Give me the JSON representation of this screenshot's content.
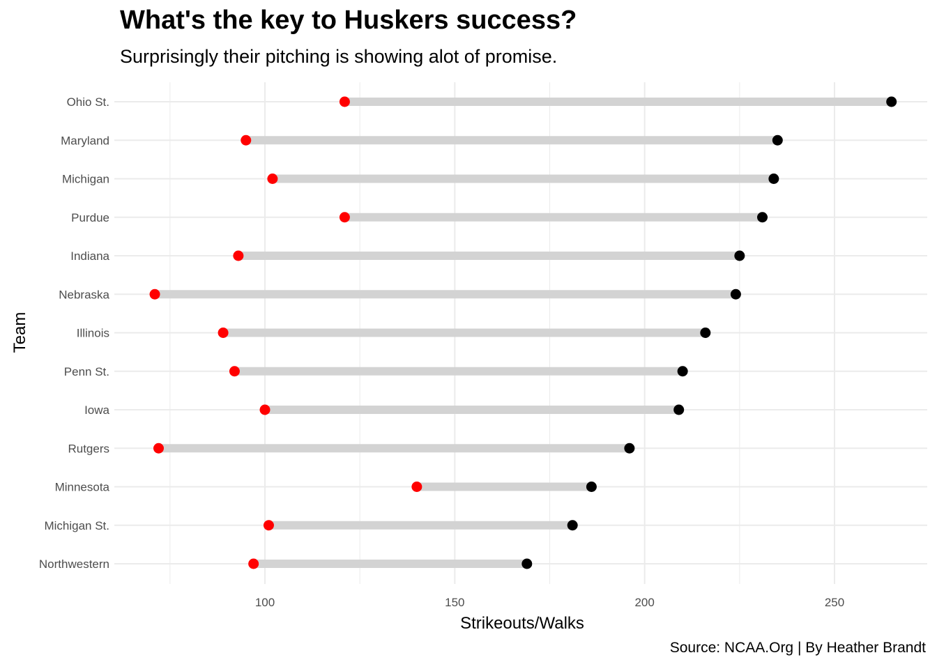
{
  "chart_data": {
    "type": "dumbbell",
    "title": "What's the key to Huskers success?",
    "subtitle": "Surprisingly their pitching is showing alot of promise.",
    "caption": "Source: NCAA.Org | By Heather Brandt",
    "xlabel": "Strikeouts/Walks",
    "ylabel": "Team",
    "xlim": [
      59,
      273
    ],
    "xticks": [
      100,
      150,
      200,
      250
    ],
    "grid": true,
    "categories": [
      "Ohio St.",
      "Maryland",
      "Michigan",
      "Purdue",
      "Indiana",
      "Nebraska",
      "Illinois",
      "Penn St.",
      "Iowa",
      "Rutgers",
      "Minnesota",
      "Michigan St.",
      "Northwestern"
    ],
    "series": [
      {
        "color": "#ff0000",
        "values": [
          121,
          95,
          102,
          121,
          93,
          71,
          89,
          92,
          100,
          72,
          140,
          101,
          97
        ]
      },
      {
        "color": "#000000",
        "values": [
          265,
          235,
          234,
          231,
          225,
          224,
          216,
          210,
          209,
          196,
          186,
          181,
          169
        ]
      }
    ],
    "segment_color": "#d3d3d3",
    "grid_color": "#ebebeb"
  }
}
